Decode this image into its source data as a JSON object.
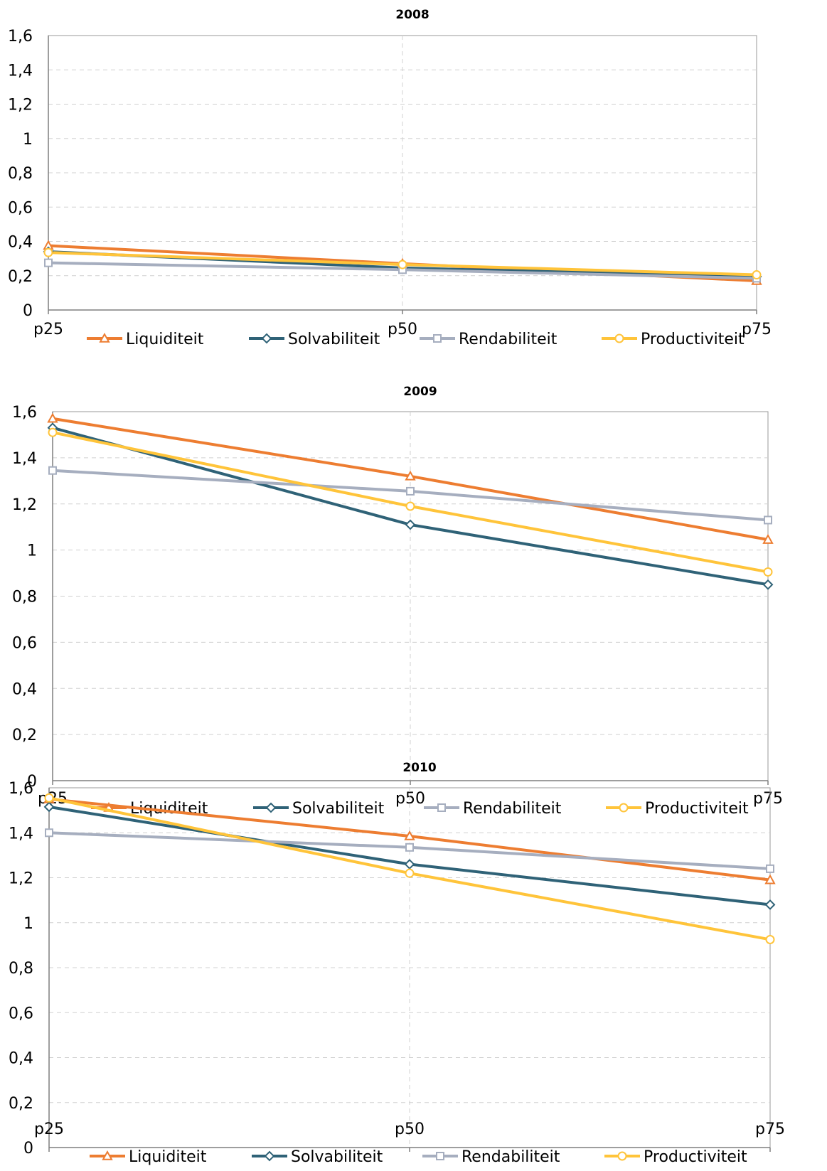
{
  "chart_data": [
    {
      "type": "line",
      "title": "2008",
      "categories": [
        "p25",
        "p50",
        "p75"
      ],
      "ylim": [
        0,
        1.6
      ],
      "yticks": [
        "0",
        "0,2",
        "0,4",
        "0,6",
        "0,8",
        "1",
        "1,2",
        "1,4",
        "1,6"
      ],
      "grid": true,
      "legend": "bottom",
      "series": [
        {
          "name": "Liquiditeit",
          "color": "#ED7D31",
          "marker": "triangle",
          "values": [
            0.375,
            0.27,
            0.17
          ]
        },
        {
          "name": "Solvabiliteit",
          "color": "#2F6277",
          "marker": "diamond",
          "values": [
            0.34,
            0.245,
            0.195
          ]
        },
        {
          "name": "Rendabiliteit",
          "color": "#A6AEBF",
          "marker": "square",
          "values": [
            0.275,
            0.235,
            0.185
          ]
        },
        {
          "name": "Productiviteit",
          "color": "#FFC43A",
          "marker": "circle",
          "values": [
            0.335,
            0.265,
            0.205
          ]
        }
      ]
    },
    {
      "type": "line",
      "title": "2009",
      "categories": [
        "p25",
        "p50",
        "p75"
      ],
      "ylim": [
        0,
        1.6
      ],
      "yticks": [
        "0",
        "0,2",
        "0,4",
        "0,6",
        "0,8",
        "1",
        "1,2",
        "1,4",
        "1,6"
      ],
      "grid": true,
      "legend": "bottom",
      "series": [
        {
          "name": "Liquiditeit",
          "color": "#ED7D31",
          "marker": "triangle",
          "values": [
            1.57,
            1.32,
            1.045
          ]
        },
        {
          "name": "Solvabiliteit",
          "color": "#2F6277",
          "marker": "diamond",
          "values": [
            1.53,
            1.11,
            0.85
          ]
        },
        {
          "name": "Rendabiliteit",
          "color": "#A6AEBF",
          "marker": "square",
          "values": [
            1.345,
            1.255,
            1.13
          ]
        },
        {
          "name": "Productiviteit",
          "color": "#FFC43A",
          "marker": "circle",
          "values": [
            1.51,
            1.19,
            0.905
          ]
        }
      ]
    },
    {
      "type": "line",
      "title": "2010",
      "categories": [
        "p25",
        "p50",
        "p75"
      ],
      "ylim": [
        0,
        1.6
      ],
      "yticks": [
        "0",
        "0,2",
        "0,4",
        "0,6",
        "0,8",
        "1",
        "1,2",
        "1,4",
        "1,6"
      ],
      "grid": true,
      "legend": "bottom",
      "series": [
        {
          "name": "Liquiditeit",
          "color": "#ED7D31",
          "marker": "triangle",
          "values": [
            1.55,
            1.385,
            1.19
          ]
        },
        {
          "name": "Solvabiliteit",
          "color": "#2F6277",
          "marker": "diamond",
          "values": [
            1.515,
            1.26,
            1.08
          ]
        },
        {
          "name": "Rendabiliteit",
          "color": "#A6AEBF",
          "marker": "square",
          "values": [
            1.4,
            1.335,
            1.24
          ]
        },
        {
          "name": "Productiviteit",
          "color": "#FFC43A",
          "marker": "circle",
          "values": [
            1.555,
            1.22,
            0.925
          ]
        }
      ]
    }
  ]
}
